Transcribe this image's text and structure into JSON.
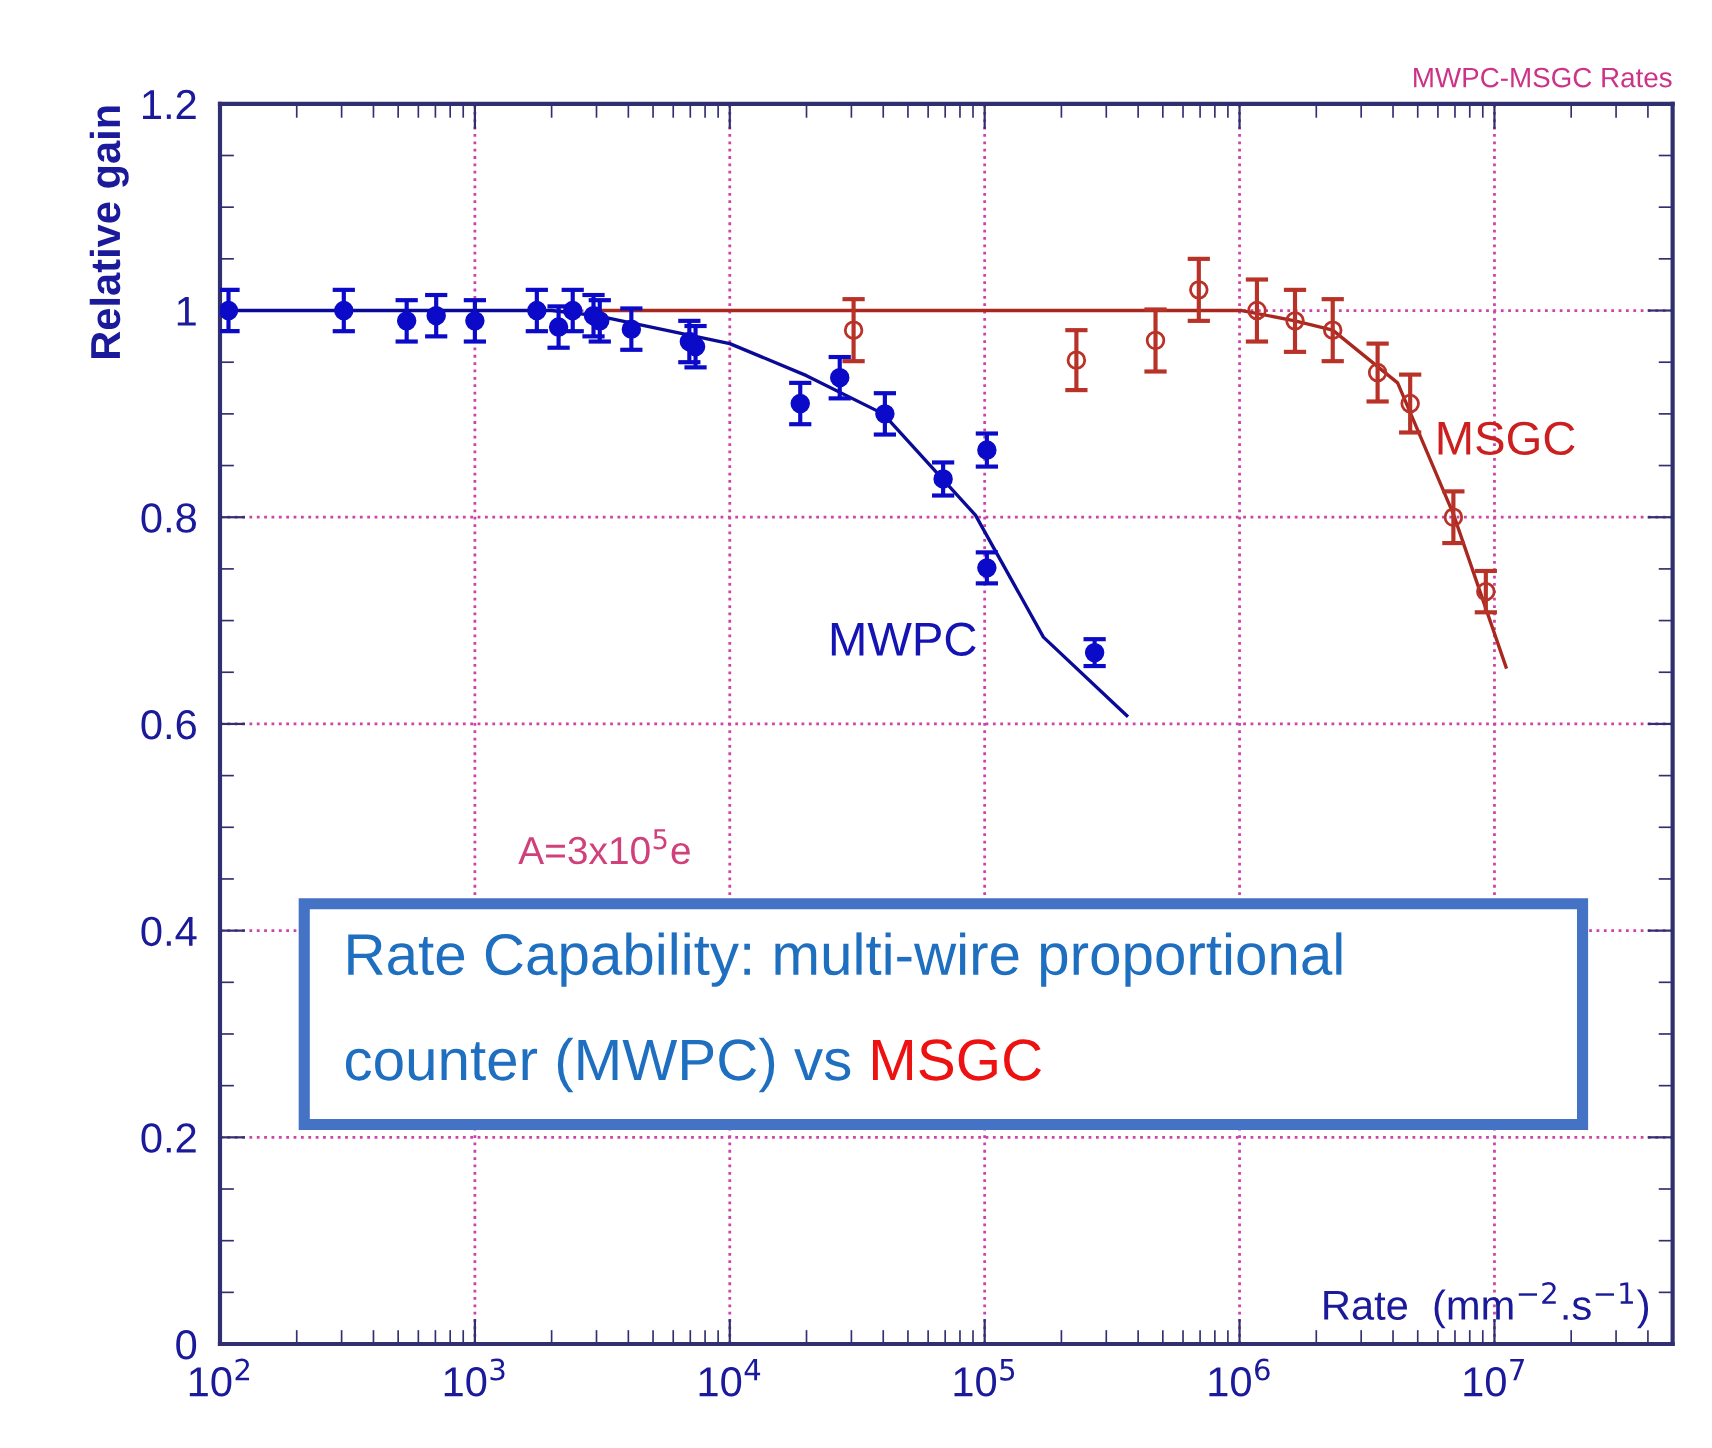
{
  "chart_data": {
    "type": "scatter",
    "title": "MWPC-MSGC Rates",
    "xlabel": "Rate  (mm$^{−2}$.s$^{−1}$)",
    "ylabel": "Relative gain",
    "log": "x",
    "grid": true,
    "xlim": [
      100,
      50000000
    ],
    "ylim": [
      0,
      1.2
    ],
    "xticks": [
      {
        "value": 100,
        "label": "10$^{2}$"
      },
      {
        "value": 1000,
        "label": "10$^{3}$"
      },
      {
        "value": 10000,
        "label": "10$^{4}$"
      },
      {
        "value": 100000,
        "label": "10$^{5}$"
      },
      {
        "value": 1000000,
        "label": "10$^{6}$"
      },
      {
        "value": 10000000,
        "label": "10$^{7}$"
      }
    ],
    "yticks": [
      0,
      0.2,
      0.4,
      0.6,
      0.8,
      1,
      1.2
    ],
    "series": [
      {
        "color": "#0a0ac8",
        "marker": "circle",
        "x": [
          108,
          306,
          540,
          705,
          1000,
          1750,
          2130,
          2420,
          2920,
          3090,
          4110,
          6940,
          7340,
          18900,
          27000,
          40600,
          68700,
          102000,
          102000,
          270000
        ],
        "values": [
          1.0,
          1.0,
          0.99,
          0.995,
          0.99,
          1.0,
          0.984,
          1.0,
          0.995,
          0.99,
          0.982,
          0.97,
          0.965,
          0.91,
          0.935,
          0.9,
          0.837,
          0.865,
          0.751,
          0.669
        ],
        "errors": [
          0.02,
          0.02,
          0.02,
          0.02,
          0.02,
          0.02,
          0.02,
          0.02,
          0.02,
          0.02,
          0.02,
          0.02,
          0.02,
          0.02,
          0.02,
          0.02,
          0.016,
          0.016,
          0.015,
          0.013
        ]
      },
      {
        "color": "#b83228",
        "marker": "circle",
        "x": [
          30600,
          229000,
          468000,
          692000,
          1170000,
          1650000,
          2320000,
          3480000,
          4670000,
          6900000,
          9250000
        ],
        "values": [
          0.981,
          0.952,
          0.971,
          1.02,
          1.0,
          0.99,
          0.981,
          0.94,
          0.91,
          0.8,
          0.728
        ],
        "errors": [
          0.03,
          0.029,
          0.03,
          0.03,
          0.03,
          0.03,
          0.03,
          0.028,
          0.028,
          0.025,
          0.02
        ]
      },
      {
        "type": "line",
        "marker": "none",
        "color": "#0a0a96",
        "x": [
          100,
          2000,
          3000,
          10000,
          20000,
          40000,
          92000,
          170000,
          361000
        ],
        "values": [
          1.0,
          1.0,
          0.995,
          0.968,
          0.937,
          0.9,
          0.802,
          0.684,
          0.608
        ]
      },
      {
        "type": "line",
        "marker": "none",
        "color": "#a82820",
        "x": [
          3090,
          1020000,
          1650000,
          2320000,
          4170000,
          6900000,
          11100000
        ],
        "values": [
          1.0,
          1.0,
          0.99,
          0.981,
          0.93,
          0.803,
          0.655
        ]
      }
    ],
    "annotations": [
      "MWPC",
      "MSGC",
      "A=3x10$^{5}$e",
      "Rate Capability: multi-wire proportional counter (MWPC) vs",
      "MSGC"
    ]
  }
}
